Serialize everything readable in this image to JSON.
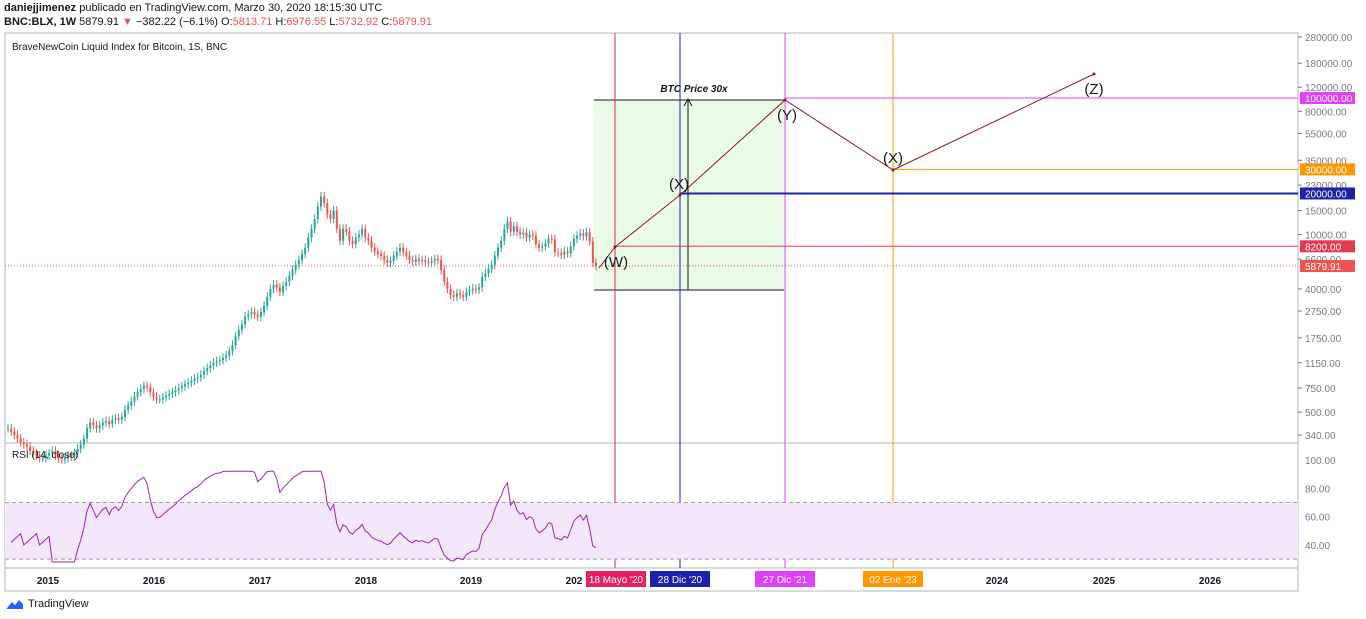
{
  "header": {
    "author": "daniejjimenez",
    "published_text": "publicado en TradingView.com, Marzo 30, 2020 18:15:30 UTC",
    "symbol": "BNC:BLX, 1W",
    "price": "5879.91",
    "change": "−382.22 (−6.1%)",
    "open_label": "O:",
    "open": "5813.71",
    "high_label": "H:",
    "high": "6976.55",
    "low_label": "L:",
    "low": "5732.92",
    "close_label": "C:",
    "close": "5879.91"
  },
  "footer": {
    "brand": "TradingView"
  },
  "chart_data": {
    "type": "candlestick",
    "title": "BraveNewCoin Liquid Index for Bitcoin, 1S, BNC",
    "y_scale": "log",
    "price_axis_ticks": [
      "280000.00",
      "180000.00",
      "120000.00",
      "80000.00",
      "55000.00",
      "35000.00",
      "23000.00",
      "15000.00",
      "10000.00",
      "6600.00",
      "4000.00",
      "2750.00",
      "1750.00",
      "1150.00",
      "750.00",
      "500.00",
      "340.00"
    ],
    "time_axis_ticks": [
      "2015",
      "2016",
      "2017",
      "2018",
      "2019",
      "202",
      "2024",
      "2025",
      "2026"
    ],
    "time_markers": [
      {
        "label": "18 Mayo '20",
        "color": "#e91e63"
      },
      {
        "label": "28 Dic '20",
        "color": "#1e22aa"
      },
      {
        "label": "27 Dic '21",
        "color": "#e040fb"
      },
      {
        "label": "02 Ene '23",
        "color": "#ff9800"
      }
    ],
    "price_levels": [
      {
        "label": "100000.00",
        "value": 100000,
        "color": "#e040fb"
      },
      {
        "label": "30000.00",
        "value": 30000,
        "color": "#ff9800"
      },
      {
        "label": "20000.00",
        "value": 20000,
        "color": "#1e22aa"
      },
      {
        "label": "8200.00",
        "value": 8200,
        "color": "#e53950"
      },
      {
        "label": "5879.91",
        "value": 5879.91,
        "color": "#ef5350"
      }
    ],
    "projection": {
      "labels": [
        "(W)",
        "(X)",
        "(Y)",
        "(X)",
        "(Z)"
      ],
      "box_label": "BTC Price 30x"
    },
    "rsi": {
      "title": "RSI (14, close)",
      "ticks": [
        "100.00",
        "80.00",
        "60.00",
        "40.00"
      ],
      "band": [
        30,
        70
      ]
    },
    "candles_weekly_close_approx": [
      380,
      360,
      340,
      320,
      300,
      290,
      280,
      260,
      250,
      240,
      230,
      230,
      240,
      250,
      260,
      240,
      230,
      225,
      230,
      240,
      235,
      250,
      270,
      290,
      320,
      380,
      420,
      400,
      380,
      400,
      420,
      430,
      410,
      440,
      450,
      440,
      460,
      520,
      560,
      600,
      650,
      700,
      740,
      780,
      760,
      700,
      650,
      620,
      620,
      640,
      660,
      680,
      700,
      720,
      750,
      770,
      800,
      820,
      850,
      880,
      900,
      940,
      1000,
      1050,
      1100,
      1150,
      1180,
      1200,
      1250,
      1300,
      1400,
      1550,
      1800,
      2000,
      2200,
      2500,
      2600,
      2700,
      2600,
      2500,
      2700,
      3000,
      3500,
      4000,
      4300,
      4100,
      3800,
      4200,
      4500,
      5000,
      5500,
      6000,
      6500,
      7200,
      8000,
      9500,
      11000,
      13000,
      16000,
      19000,
      17000,
      14000,
      13000,
      15000,
      11000,
      9000,
      11000,
      10500,
      9000,
      8500,
      9500,
      10000,
      11000,
      9500,
      9000,
      8000,
      7500,
      7200,
      7000,
      6500,
      6200,
      6400,
      7000,
      7500,
      8000,
      7400,
      7000,
      6500,
      6300,
      6600,
      6400,
      6500,
      6300,
      6200,
      6400,
      6600,
      6500,
      5500,
      4500,
      4000,
      3600,
      3500,
      3700,
      3600,
      3500,
      3800,
      3900,
      4000,
      3950,
      4100,
      4900,
      5200,
      5600,
      6000,
      7000,
      8000,
      9000,
      11000,
      12500,
      10500,
      11500,
      10500,
      10000,
      10300,
      9500,
      10000,
      9800,
      8500,
      8000,
      8200,
      8600,
      9300,
      9200,
      7400,
      7300,
      7100,
      7500,
      7300,
      8200,
      9300,
      9800,
      10200,
      9700,
      10400,
      8900,
      6200,
      5880
    ]
  }
}
